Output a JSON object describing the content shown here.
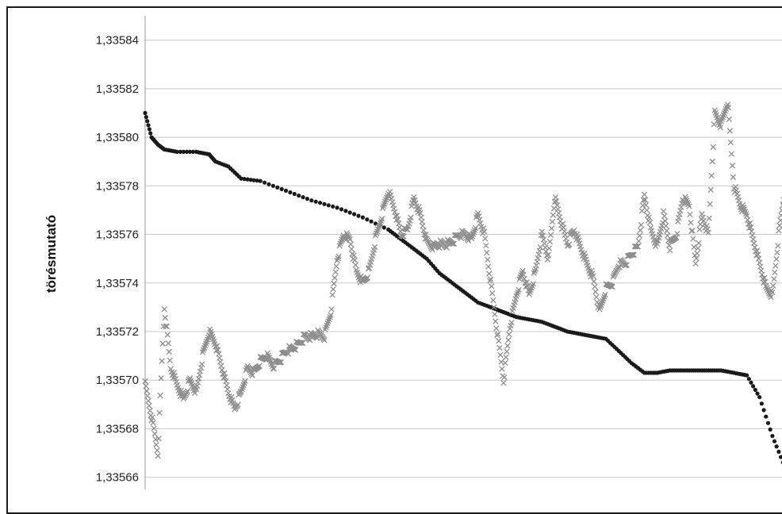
{
  "chart_data": {
    "type": "scatter",
    "title": "",
    "xlabel": "",
    "ylabel": "törésmutató",
    "ylim": [
      1.335655,
      1.33585
    ],
    "y_ticks": [
      1.33566,
      1.33568,
      1.3357,
      1.33572,
      1.33574,
      1.33576,
      1.33578,
      1.3358,
      1.33582,
      1.33584
    ],
    "y_tick_labels": [
      "1,33566",
      "1,33568",
      "1,33570",
      "1,33572",
      "1,33574",
      "1,33576",
      "1,33578",
      "1,33580",
      "1,33582",
      "1,33584"
    ],
    "grid": true,
    "legend": "none",
    "xlim": [
      0,
      100
    ],
    "series": [
      {
        "marker": "circle",
        "color": "#1a1a1a",
        "x": [
          0,
          1,
          2,
          3,
          5,
          8,
          10,
          11,
          13,
          15,
          18,
          22,
          26,
          30,
          34,
          38,
          40,
          42,
          44,
          46,
          48,
          50,
          52,
          54,
          56,
          58,
          60,
          62,
          64,
          66,
          68,
          70,
          72,
          74,
          76,
          78,
          80,
          82,
          84,
          86,
          88,
          90,
          92,
          94,
          96,
          98,
          100
        ],
        "values": [
          1.33581,
          1.3358,
          1.335797,
          1.335795,
          1.335794,
          1.335794,
          1.335793,
          1.33579,
          1.335788,
          1.335783,
          1.335782,
          1.335778,
          1.335774,
          1.335771,
          1.335767,
          1.335762,
          1.335758,
          1.335754,
          1.33575,
          1.335744,
          1.33574,
          1.335736,
          1.335732,
          1.33573,
          1.335728,
          1.335726,
          1.335725,
          1.335724,
          1.335722,
          1.33572,
          1.335719,
          1.335718,
          1.335717,
          1.335712,
          1.335707,
          1.335703,
          1.335703,
          1.335704,
          1.335704,
          1.335704,
          1.335704,
          1.335704,
          1.335703,
          1.335702,
          1.335693,
          1.335677,
          1.335664
        ]
      },
      {
        "marker": "x",
        "color": "#8e8e8e",
        "x": [
          0,
          1,
          2,
          3,
          4,
          5,
          6,
          7,
          8,
          9,
          10,
          11,
          12,
          13,
          14,
          15,
          16,
          17,
          18,
          19,
          20,
          21,
          22,
          23,
          24,
          25,
          26,
          27,
          28,
          29,
          30,
          31,
          32,
          33,
          34,
          35,
          36,
          37,
          38,
          39,
          40,
          41,
          42,
          43,
          44,
          45,
          46,
          47,
          48,
          49,
          50,
          51,
          52,
          53,
          54,
          55,
          56,
          57,
          58,
          59,
          60,
          61,
          62,
          63,
          64,
          65,
          66,
          67,
          68,
          69,
          70,
          71,
          72,
          73,
          74,
          75,
          76,
          77,
          78,
          79,
          80,
          81,
          82,
          83,
          84,
          85,
          86,
          87,
          88,
          89,
          90,
          91,
          92,
          93,
          94,
          95,
          96,
          97,
          98,
          99,
          100
        ],
        "values": [
          1.335698,
          1.335685,
          1.33567,
          1.33573,
          1.335705,
          1.335698,
          1.335692,
          1.3357,
          1.335695,
          1.33571,
          1.33572,
          1.335715,
          1.335705,
          1.335695,
          1.335688,
          1.335695,
          1.335705,
          1.335703,
          1.335708,
          1.33571,
          1.335706,
          1.335708,
          1.335712,
          1.335713,
          1.335715,
          1.335718,
          1.335718,
          1.335719,
          1.335718,
          1.335728,
          1.33575,
          1.33576,
          1.335758,
          1.335745,
          1.33574,
          1.335745,
          1.335758,
          1.335768,
          1.335778,
          1.33577,
          1.33576,
          1.335762,
          1.335775,
          1.335768,
          1.335757,
          1.335755,
          1.335756,
          1.335756,
          1.335757,
          1.33576,
          1.33576,
          1.335758,
          1.335768,
          1.33576,
          1.33574,
          1.33572,
          1.3357,
          1.335722,
          1.335735,
          1.335745,
          1.335735,
          1.335745,
          1.33576,
          1.33575,
          1.335775,
          1.335765,
          1.335756,
          1.335762,
          1.335755,
          1.335748,
          1.335742,
          1.335728,
          1.335738,
          1.33574,
          1.335748,
          1.335748,
          1.335752,
          1.335755,
          1.335776,
          1.335762,
          1.335755,
          1.335768,
          1.335755,
          1.33576,
          1.335775,
          1.335772,
          1.335748,
          1.335768,
          1.33576,
          1.33581,
          1.335805,
          1.335815,
          1.33578,
          1.335772,
          1.335768,
          1.335758,
          1.335748,
          1.335738,
          1.335735,
          1.33576,
          1.33578
        ]
      }
    ]
  }
}
